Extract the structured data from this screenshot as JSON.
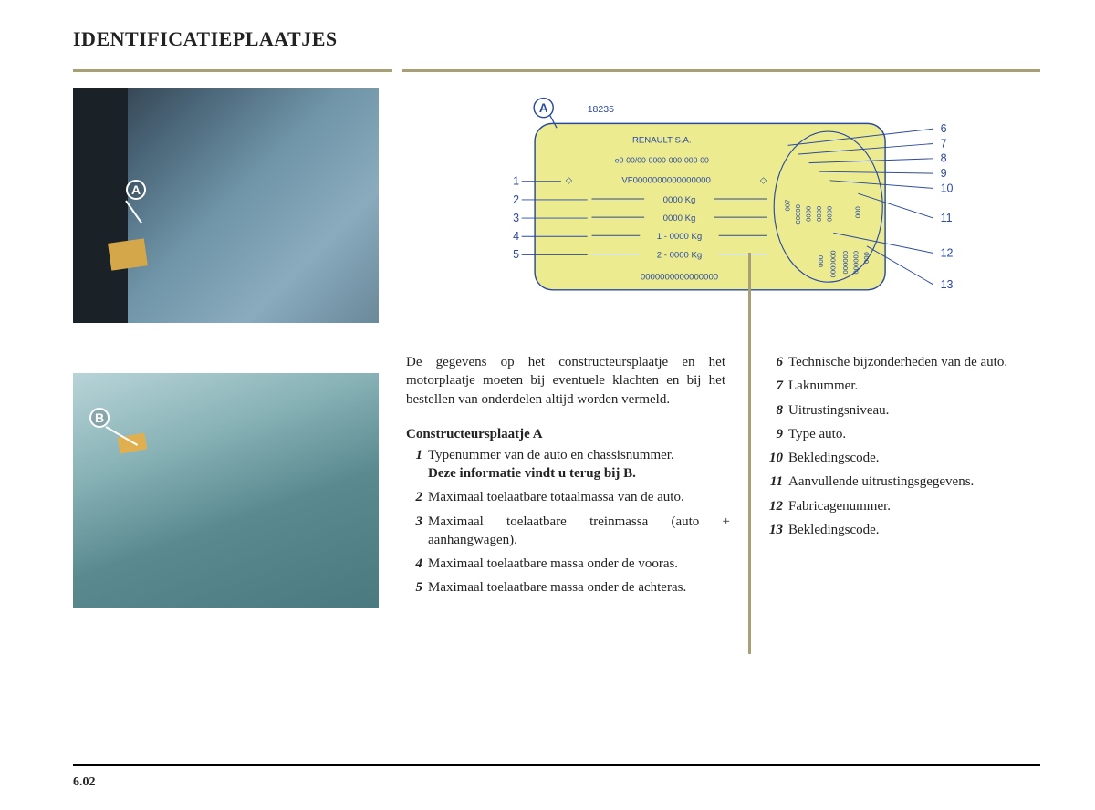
{
  "title": "IDENTIFICATIEPLAATJES",
  "pageNumber": "6.02",
  "photoA": {
    "label": "A"
  },
  "photoB": {
    "label": "B"
  },
  "diagram": {
    "calloutLabel": "A",
    "headerCode": "18235",
    "company": "RENAULT S.A.",
    "typeApproval": "e0-00/00-0000-000-000-00",
    "vin": "VF0000000000000000",
    "mass1": "0000 Kg",
    "mass2": "0000 Kg",
    "mass3": "1 - 0000 Kg",
    "mass4": "2 - 0000 Kg",
    "bottomCode": "0000000000000000",
    "leftNumbers": [
      "1",
      "2",
      "3",
      "4",
      "5"
    ],
    "rightNumbers": [
      "6",
      "7",
      "8",
      "9",
      "10",
      "11",
      "12",
      "13"
    ],
    "ovalCodes": [
      "007",
      "C000",
      "0000",
      "0000",
      "0000",
      "000",
      "0000000",
      "000000",
      "000",
      "000000",
      "000"
    ],
    "plateFill": "#eceb8f",
    "plateStroke": "#2a4aa0",
    "bgFill": "#ffffff",
    "numberFont": "Arial"
  },
  "intro": "De gegevens op het constructeursplaatje en het motorplaatje moeten bij eventuele klachten en bij het bestellen van onderdelen altijd worden vermeld.",
  "subhead": "Constructeursplaatje A",
  "listLeft": [
    {
      "n": "1",
      "t": "Typenummer van de auto en chassisnummer.",
      "cross": "Deze informatie vindt u terug bij B."
    },
    {
      "n": "2",
      "t": "Maximaal toelaatbare totaalmassa van de auto."
    },
    {
      "n": "3",
      "t": "Maximaal toelaatbare treinmassa (auto + aanhangwagen)."
    },
    {
      "n": "4",
      "t": "Maximaal toelaatbare massa onder de vooras."
    },
    {
      "n": "5",
      "t": "Maximaal toelaatbare massa onder de achteras."
    }
  ],
  "listRight": [
    {
      "n": "6",
      "t": "Technische bijzonderheden van de auto."
    },
    {
      "n": "7",
      "t": "Laknummer."
    },
    {
      "n": "8",
      "t": "Uitrustingsniveau."
    },
    {
      "n": "9",
      "t": "Type auto."
    },
    {
      "n": "10",
      "t": "Bekledingscode."
    },
    {
      "n": "11",
      "t": "Aanvullende uitrustingsgegevens."
    },
    {
      "n": "12",
      "t": "Fabricagenummer."
    },
    {
      "n": "13",
      "t": "Bekledingscode."
    }
  ],
  "colors": {
    "ruleColor": "#a8a074",
    "textColor": "#222222"
  }
}
